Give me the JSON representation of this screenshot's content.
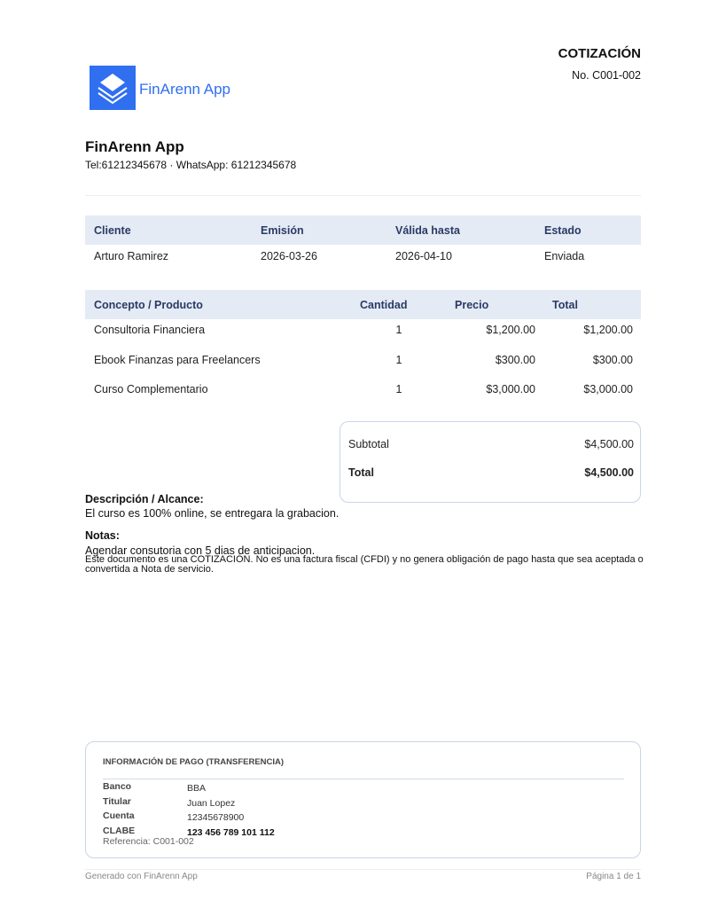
{
  "doc": {
    "type": "COTIZACIÓN",
    "number": "No. C001-002"
  },
  "brand": {
    "logo_text": "FinArenn App",
    "color": "#2f6ff0"
  },
  "company": {
    "name": "FinArenn App",
    "contact": "Tel:61212345678 · WhatsApp: 61212345678"
  },
  "info": {
    "headers": [
      "Cliente",
      "Emisión",
      "Válida hasta",
      "Estado"
    ],
    "values": [
      "Arturo Ramirez",
      "2026-03-26",
      "2026-04-10",
      "Enviada"
    ]
  },
  "items": {
    "headers": [
      "Concepto / Producto",
      "Cantidad",
      "Precio",
      "Total"
    ],
    "rows": [
      [
        "Consultoria Financiera",
        "1",
        "$1,200.00",
        "$1,200.00"
      ],
      [
        "Ebook Finanzas para Freelancers",
        "1",
        "$300.00",
        "$300.00"
      ],
      [
        "Curso Complementario",
        "1",
        "$3,000.00",
        "$3,000.00"
      ]
    ]
  },
  "totals": {
    "subtotal_label": "Subtotal",
    "subtotal": "$4,500.00",
    "total_label": "Total",
    "total": "$4,500.00"
  },
  "description": {
    "label": "Descripción / Alcance:",
    "text": "El curso es 100% online, se entregara la grabacion."
  },
  "notes": {
    "label": "Notas:",
    "text": "Agendar consutoria con 5 dias de anticipacion.",
    "disclaimer1": "Este documento es una COTIZACIÓN. No es una factura fiscal (CFDI) y no genera obligación de pago hasta que sea aceptada o",
    "disclaimer2": "convertida a Nota de servicio."
  },
  "payment": {
    "title": "INFORMACIÓN DE PAGO (TRANSFERENCIA)",
    "rows": [
      [
        "Banco",
        "BBA"
      ],
      [
        "Titular",
        "Juan Lopez"
      ],
      [
        "Cuenta",
        "12345678900"
      ],
      [
        "CLABE",
        "123 456 789 101 112"
      ]
    ],
    "reference": "Referencia: C001-002"
  },
  "footer": {
    "left": "Generado con FinArenn App",
    "right": "Página 1 de 1"
  }
}
